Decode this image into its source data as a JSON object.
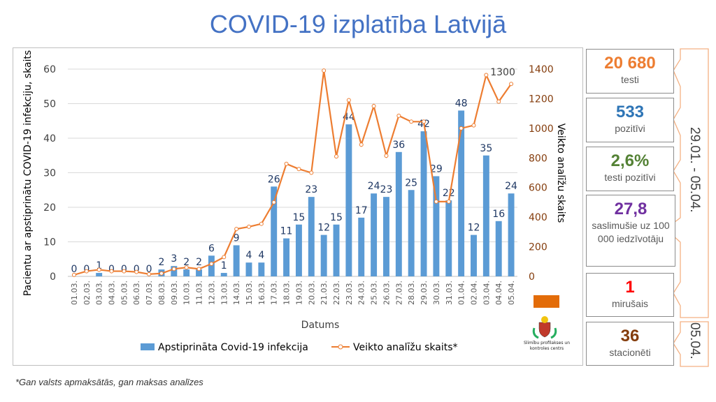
{
  "title": "COVID-19 izplatība Latvijā",
  "chart_data": {
    "type": "bar+line",
    "categories": [
      "01.03.",
      "02.03.",
      "03.03.",
      "04.03.",
      "05.03.",
      "06.03.",
      "07.03.",
      "08.03.",
      "09.03.",
      "10.03.",
      "11.03.",
      "12.03.",
      "13.03.",
      "14.03.",
      "15.03.",
      "16.03.",
      "17.03.",
      "18.03.",
      "19.03.",
      "20.03.",
      "21.03.",
      "22.03.",
      "23.03.",
      "24.03.",
      "25.03.",
      "26.03.",
      "27.03.",
      "28.03.",
      "29.03.",
      "30.03.",
      "31.03.",
      "01.04.",
      "02.04.",
      "03.04.",
      "04.04.",
      "05.04."
    ],
    "series": [
      {
        "name": "Apstiprināta Covid-19 infekcija",
        "type": "bar",
        "axis": "left",
        "color": "#5b9bd5",
        "values": [
          0,
          0,
          1,
          0,
          0,
          0,
          0,
          2,
          3,
          2,
          2,
          6,
          1,
          9,
          4,
          4,
          26,
          11,
          15,
          23,
          12,
          15,
          44,
          17,
          24,
          23,
          36,
          25,
          42,
          29,
          22,
          48,
          12,
          35,
          16,
          24
        ]
      },
      {
        "name": "Veikto analīžu skaits*",
        "type": "line",
        "axis": "right",
        "color": "#ed7d31",
        "values": [
          10,
          35,
          45,
          35,
          35,
          30,
          15,
          20,
          50,
          60,
          50,
          85,
          130,
          320,
          335,
          355,
          500,
          760,
          725,
          700,
          1390,
          810,
          1190,
          890,
          1150,
          815,
          1085,
          1045,
          1045,
          505,
          505,
          1000,
          1020,
          1360,
          1180,
          1300
        ],
        "labeled_point": "1300"
      }
    ],
    "xlabel": "Datums",
    "ylabel": "Pacientu ar apstiprinātu COVID-19 infekciju, skaits",
    "y2label": "Veikto analīžu skaits",
    "ylim": [
      0,
      60
    ],
    "yticks": [
      "0",
      "10",
      "20",
      "30",
      "40",
      "50",
      "60"
    ],
    "y2lim": [
      0,
      1400
    ],
    "y2ticks": [
      "0",
      "200",
      "400",
      "600",
      "800",
      "1000",
      "1200",
      "1400"
    ],
    "grid": true,
    "legend": "bottom"
  },
  "stats": [
    {
      "value": "20 680",
      "label": "testi",
      "color": "#ed7d31"
    },
    {
      "value": "533",
      "label": "pozitīvi",
      "color": "#2e75b6"
    },
    {
      "value": "2,6%",
      "label": "testi pozitīvi",
      "color": "#548235"
    },
    {
      "value": "27,8",
      "label": "saslimušie uz 100 000 iedzīvotāju",
      "color": "#7030a0"
    },
    {
      "value": "1",
      "label": "mirušais",
      "color": "#ff0000"
    },
    {
      "value": "36",
      "label": "stacionēti",
      "color": "#843c0c"
    }
  ],
  "period": "29.01. - 05.04.",
  "date": "05.04.",
  "logo_text": "Slimību profilakses un kontroles centrs",
  "footnote": "*Gan valsts apmaksātās, gan maksas analīzes"
}
